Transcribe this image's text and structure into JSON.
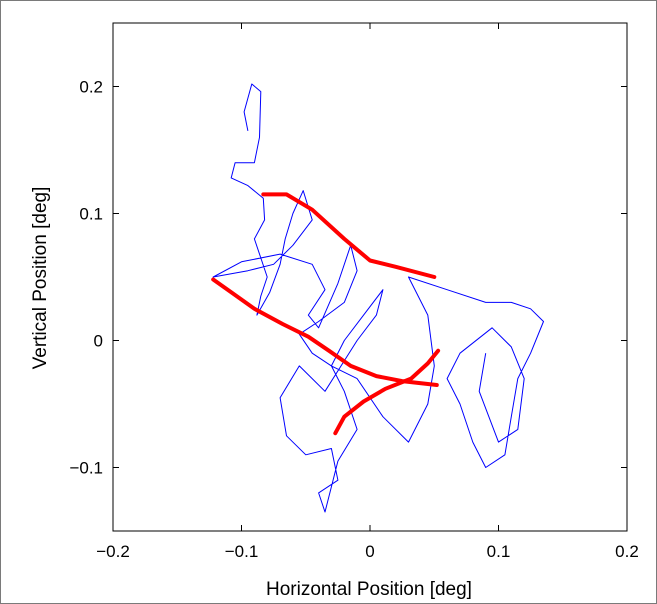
{
  "chart_data": {
    "type": "line",
    "title": "",
    "xlabel": "Horizontal Position [deg]",
    "ylabel": "Vertical Position [deg]",
    "xlim": [
      -0.2,
      0.2
    ],
    "ylim": [
      -0.15,
      0.25
    ],
    "xticks": [
      -0.2,
      -0.1,
      0,
      0.1,
      0.2
    ],
    "xtick_labels": [
      "−0.2",
      "−0.1",
      "0",
      "0.1",
      "0.2"
    ],
    "yticks": [
      -0.1,
      0,
      0.1,
      0.2
    ],
    "ytick_labels": [
      "−0.1",
      "0",
      "0.1",
      "0.2"
    ],
    "grid": false,
    "legend": "none",
    "colors": {
      "trace": "#0000ff",
      "path": "#ff0000",
      "axes": "#000000"
    },
    "series": [
      {
        "values": [
          [
            0.053,
            -0.008
          ],
          [
            0.045,
            -0.018
          ],
          [
            0.032,
            -0.03
          ],
          [
            0.012,
            -0.038
          ],
          [
            -0.005,
            -0.048
          ],
          [
            -0.02,
            -0.06
          ],
          [
            -0.027,
            -0.073
          ]
        ]
      },
      {
        "values": [
          [
            -0.122,
            0.048
          ],
          [
            -0.108,
            0.038
          ],
          [
            -0.09,
            0.025
          ],
          [
            -0.068,
            0.013
          ],
          [
            -0.048,
            0.003
          ],
          [
            -0.032,
            -0.008
          ],
          [
            -0.015,
            -0.02
          ],
          [
            0.005,
            -0.028
          ],
          [
            0.025,
            -0.032
          ],
          [
            0.052,
            -0.035
          ]
        ]
      },
      {
        "values": [
          [
            -0.083,
            0.115
          ],
          [
            -0.065,
            0.115
          ],
          [
            -0.045,
            0.103
          ],
          [
            -0.02,
            0.08
          ],
          [
            0.0,
            0.063
          ],
          [
            0.02,
            0.058
          ],
          [
            0.05,
            0.05
          ]
        ]
      },
      {
        "values": [
          [
            -0.095,
            0.165
          ],
          [
            -0.098,
            0.18
          ],
          [
            -0.092,
            0.202
          ],
          [
            -0.085,
            0.196
          ],
          [
            -0.086,
            0.16
          ],
          [
            -0.09,
            0.14
          ],
          [
            -0.105,
            0.14
          ],
          [
            -0.108,
            0.128
          ],
          [
            -0.095,
            0.122
          ],
          [
            -0.083,
            0.112
          ],
          [
            -0.082,
            0.095
          ],
          [
            -0.09,
            0.08
          ],
          [
            -0.085,
            0.065
          ],
          [
            -0.08,
            0.05
          ],
          [
            -0.085,
            0.035
          ],
          [
            -0.088,
            0.02
          ],
          [
            -0.078,
            0.038
          ],
          [
            -0.07,
            0.06
          ],
          [
            -0.066,
            0.08
          ],
          [
            -0.06,
            0.1
          ],
          [
            -0.052,
            0.118
          ],
          [
            -0.045,
            0.095
          ],
          [
            -0.06,
            0.075
          ],
          [
            -0.075,
            0.06
          ],
          [
            -0.095,
            0.055
          ],
          [
            -0.122,
            0.05
          ],
          [
            -0.1,
            0.062
          ],
          [
            -0.07,
            0.068
          ],
          [
            -0.045,
            0.06
          ],
          [
            -0.035,
            0.04
          ],
          [
            -0.048,
            0.02
          ],
          [
            -0.04,
            0.01
          ],
          [
            -0.025,
            0.045
          ],
          [
            -0.015,
            0.075
          ],
          [
            -0.01,
            0.055
          ],
          [
            -0.02,
            0.03
          ],
          [
            -0.04,
            0.015
          ],
          [
            -0.055,
            0.005
          ],
          [
            -0.045,
            -0.01
          ],
          [
            -0.03,
            -0.02
          ],
          [
            -0.02,
            0.0
          ],
          [
            -0.005,
            0.02
          ],
          [
            0.01,
            0.04
          ],
          [
            0.005,
            0.02
          ],
          [
            -0.01,
            0.0
          ],
          [
            -0.035,
            -0.04
          ],
          [
            -0.055,
            -0.02
          ],
          [
            -0.07,
            -0.045
          ],
          [
            -0.065,
            -0.075
          ],
          [
            -0.05,
            -0.09
          ],
          [
            -0.03,
            -0.085
          ],
          [
            -0.025,
            -0.11
          ],
          [
            -0.04,
            -0.12
          ],
          [
            -0.035,
            -0.135
          ],
          [
            -0.025,
            -0.095
          ],
          [
            -0.01,
            -0.07
          ],
          [
            -0.02,
            -0.04
          ],
          [
            -0.03,
            -0.02
          ],
          [
            -0.01,
            -0.03
          ],
          [
            0.01,
            -0.06
          ],
          [
            0.03,
            -0.08
          ],
          [
            0.045,
            -0.05
          ],
          [
            0.05,
            -0.02
          ],
          [
            0.045,
            0.02
          ],
          [
            0.03,
            0.05
          ],
          [
            0.06,
            0.04
          ],
          [
            0.09,
            0.03
          ],
          [
            0.11,
            0.03
          ],
          [
            0.125,
            0.025
          ],
          [
            0.135,
            0.015
          ],
          [
            0.125,
            -0.01
          ],
          [
            0.115,
            -0.03
          ],
          [
            0.11,
            -0.06
          ],
          [
            0.105,
            -0.09
          ],
          [
            0.09,
            -0.1
          ],
          [
            0.08,
            -0.08
          ],
          [
            0.07,
            -0.05
          ],
          [
            0.06,
            -0.03
          ],
          [
            0.07,
            -0.01
          ],
          [
            0.095,
            0.01
          ],
          [
            0.11,
            -0.005
          ],
          [
            0.12,
            -0.03
          ],
          [
            0.115,
            -0.07
          ],
          [
            0.1,
            -0.08
          ],
          [
            0.085,
            -0.04
          ],
          [
            0.09,
            -0.01
          ]
        ]
      }
    ]
  }
}
